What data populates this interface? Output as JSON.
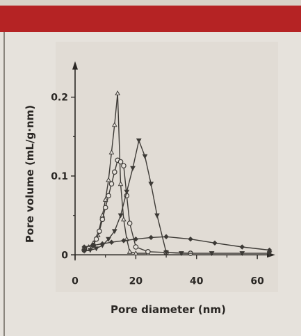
{
  "chart_data": {
    "type": "line",
    "title": "",
    "xlabel": "Pore diameter (nm)",
    "ylabel": "Pore volume (mL/g·nm)",
    "xlim": [
      0,
      65
    ],
    "ylim": [
      -0.005,
      0.235
    ],
    "x_ticks": [
      0,
      20,
      40,
      60
    ],
    "x_tick_labels": [
      "0",
      "20",
      "40",
      "60"
    ],
    "y_ticks": [
      0,
      0.1,
      0.2
    ],
    "y_tick_labels": [
      "0",
      "0.1",
      "0.2"
    ],
    "grid": false,
    "legend": "none",
    "series": [
      {
        "marker": "triangle",
        "color": "#3d3a36",
        "x": [
          3,
          4.5,
          6,
          7.5,
          9,
          10,
          11,
          12,
          13,
          14,
          15,
          16,
          17,
          18,
          20,
          24
        ],
        "y": [
          0.008,
          0.01,
          0.015,
          0.025,
          0.05,
          0.07,
          0.095,
          0.13,
          0.165,
          0.205,
          0.09,
          0.045,
          0.02,
          0.004,
          0.002,
          0.002
        ]
      },
      {
        "marker": "circle",
        "color": "#3d3a36",
        "x": [
          3,
          4.5,
          6,
          7,
          8,
          9,
          10,
          11,
          12,
          13,
          14,
          15,
          16,
          17,
          18,
          20,
          24,
          30,
          38
        ],
        "y": [
          0.006,
          0.008,
          0.012,
          0.02,
          0.03,
          0.045,
          0.06,
          0.075,
          0.09,
          0.105,
          0.12,
          0.118,
          0.113,
          0.075,
          0.04,
          0.01,
          0.004,
          0.003,
          0.002
        ]
      },
      {
        "marker": "inverted-triangle",
        "color": "#3d3a36",
        "x": [
          3,
          5,
          7,
          9,
          11,
          13,
          15,
          17,
          19,
          21,
          23,
          25,
          27,
          30,
          35,
          45,
          55,
          64
        ],
        "y": [
          0.005,
          0.006,
          0.008,
          0.012,
          0.02,
          0.03,
          0.05,
          0.08,
          0.11,
          0.145,
          0.125,
          0.09,
          0.05,
          0.003,
          0.002,
          0.002,
          0.002,
          0.002
        ]
      },
      {
        "marker": "diamond",
        "color": "#3d3a36",
        "x": [
          3,
          6,
          9,
          12,
          16,
          20,
          25,
          30,
          38,
          46,
          55,
          64
        ],
        "y": [
          0.01,
          0.012,
          0.014,
          0.016,
          0.018,
          0.02,
          0.022,
          0.023,
          0.02,
          0.015,
          0.01,
          0.006
        ]
      }
    ]
  }
}
